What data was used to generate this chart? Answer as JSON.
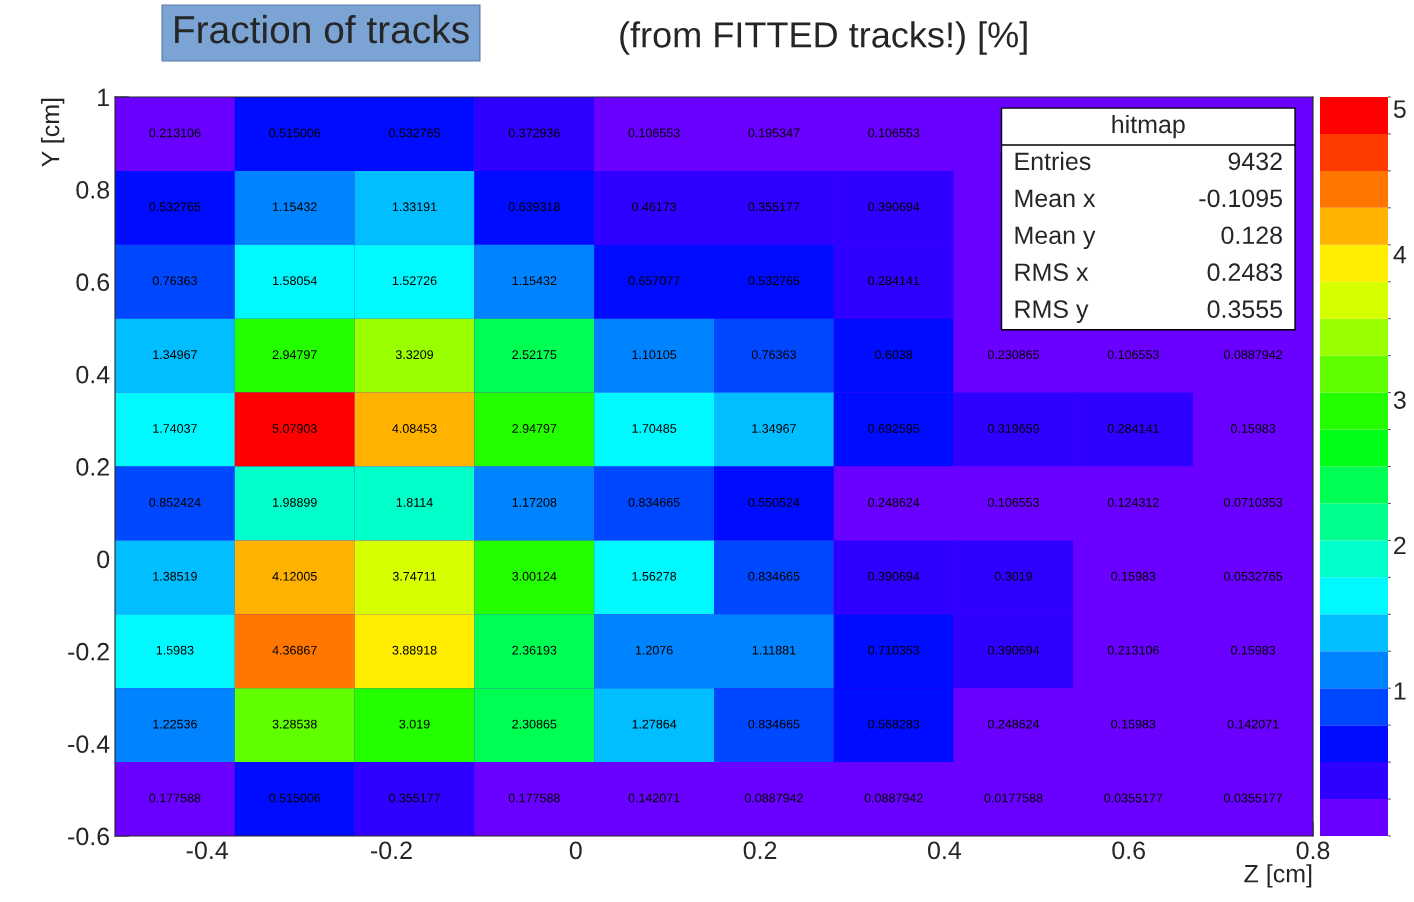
{
  "chart_data": {
    "type": "heatmap",
    "title": "Fraction of tracks",
    "subtitle": "(from FITTED tracks!) [%]",
    "xlabel": "Z [cm]",
    "ylabel": "Y [cm]",
    "x": [
      -0.435,
      -0.305,
      -0.175,
      -0.045,
      0.085,
      0.215,
      0.345,
      0.475,
      0.605,
      0.735
    ],
    "y": [
      0.92,
      0.76,
      0.6,
      0.44,
      0.28,
      0.12,
      -0.04,
      -0.2,
      -0.36,
      -0.52
    ],
    "xlim": [
      -0.5,
      0.8
    ],
    "ylim": [
      -0.6,
      1.0
    ],
    "xticks": [
      -0.4,
      -0.2,
      0,
      0.2,
      0.4,
      0.6,
      0.8
    ],
    "yticks": [
      -0.6,
      -0.4,
      -0.2,
      0,
      0.2,
      0.4,
      0.6,
      0.8,
      1
    ],
    "clim": [
      0,
      5.08
    ],
    "cticks": [
      1,
      2,
      3,
      4,
      5
    ],
    "data_labels": true,
    "cells": [
      [
        0.213106,
        0.515006,
        0.532765,
        0.372936,
        0.106553,
        0.195347,
        0.106553,
        null,
        null,
        null
      ],
      [
        0.532765,
        1.15432,
        1.33191,
        0.639318,
        0.46173,
        0.355177,
        0.390694,
        null,
        null,
        null
      ],
      [
        0.76363,
        1.58054,
        1.52726,
        1.15432,
        0.657077,
        0.532765,
        0.284141,
        null,
        null,
        null
      ],
      [
        1.34967,
        2.94797,
        3.3209,
        2.52175,
        1.10105,
        0.76363,
        0.6038,
        0.230865,
        0.106553,
        0.0887942
      ],
      [
        1.74037,
        5.07903,
        4.08453,
        2.94797,
        1.70485,
        1.34967,
        0.692595,
        0.319659,
        0.284141,
        0.15983
      ],
      [
        0.852424,
        1.98899,
        1.8114,
        1.17208,
        0.834665,
        0.550524,
        0.248624,
        0.106553,
        0.124312,
        0.0710353
      ],
      [
        1.38519,
        4.12005,
        3.74711,
        3.00124,
        1.56278,
        0.834665,
        0.390694,
        0.3019,
        0.15983,
        0.0532765
      ],
      [
        1.5983,
        4.36867,
        3.88918,
        2.36193,
        1.2076,
        1.11881,
        0.710353,
        0.390694,
        0.213106,
        0.15983
      ],
      [
        1.22536,
        3.28538,
        3.019,
        2.30865,
        1.27864,
        0.834665,
        0.568283,
        0.248624,
        0.15983,
        0.142071
      ],
      [
        0.177588,
        0.515006,
        0.355177,
        0.177588,
        0.142071,
        0.0887942,
        0.0887942,
        0.0177588,
        0.0355177,
        0.0355177
      ]
    ],
    "annotations": [
      "hitmap",
      "Entries 9432",
      "Mean x -0.1095",
      "Mean y 0.128",
      "RMS x 0.2483",
      "RMS y 0.3555"
    ]
  }
}
